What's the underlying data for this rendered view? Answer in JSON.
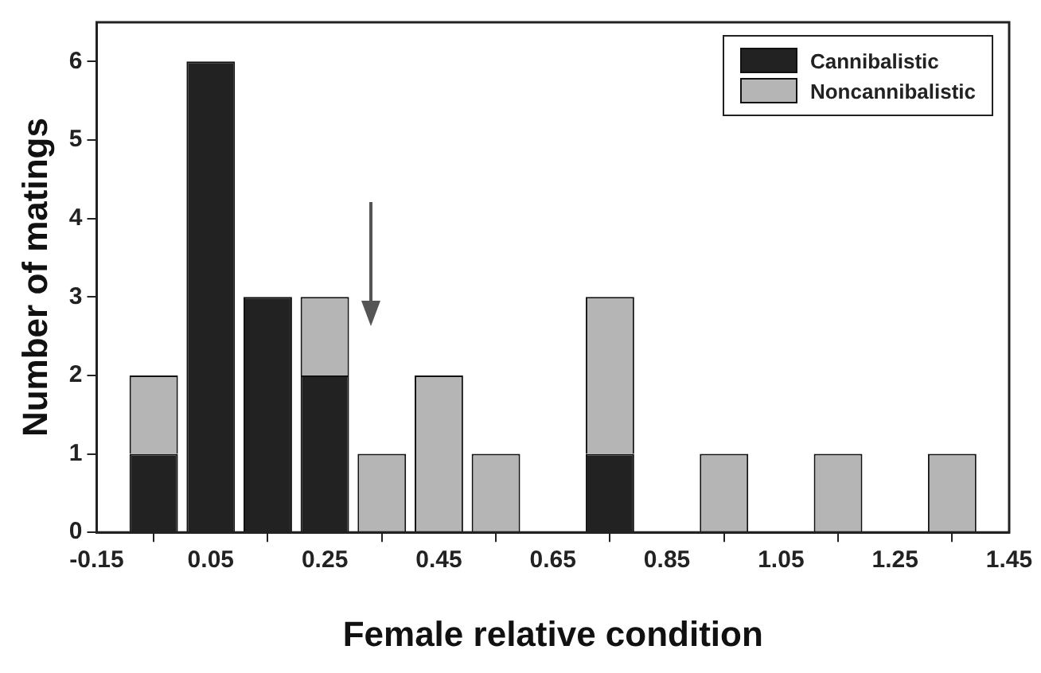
{
  "chart_data": {
    "type": "bar",
    "xlabel": "Female relative condition",
    "ylabel": "Number of matings",
    "stacked": true,
    "x": [
      -0.05,
      0.05,
      0.15,
      0.25,
      0.35,
      0.45,
      0.55,
      0.75,
      0.95,
      1.15,
      1.35
    ],
    "series": [
      {
        "name": "Cannibalistic",
        "color": "#222222",
        "values": [
          1,
          6,
          3,
          2,
          0,
          0,
          0,
          1,
          0,
          0,
          0
        ]
      },
      {
        "name": "Noncannibalistic",
        "color": "#b5b5b5",
        "values": [
          1,
          0,
          0,
          1,
          1,
          2,
          1,
          2,
          1,
          1,
          1
        ]
      }
    ],
    "xlim": [
      -0.15,
      1.45
    ],
    "xticks": [
      -0.15,
      0.05,
      0.25,
      0.45,
      0.65,
      0.85,
      1.05,
      1.25,
      1.45
    ],
    "ylim": [
      0,
      6.5
    ],
    "yticks": [
      0,
      1,
      2,
      3,
      4,
      5,
      6
    ],
    "grid": false,
    "legend": "top right"
  }
}
